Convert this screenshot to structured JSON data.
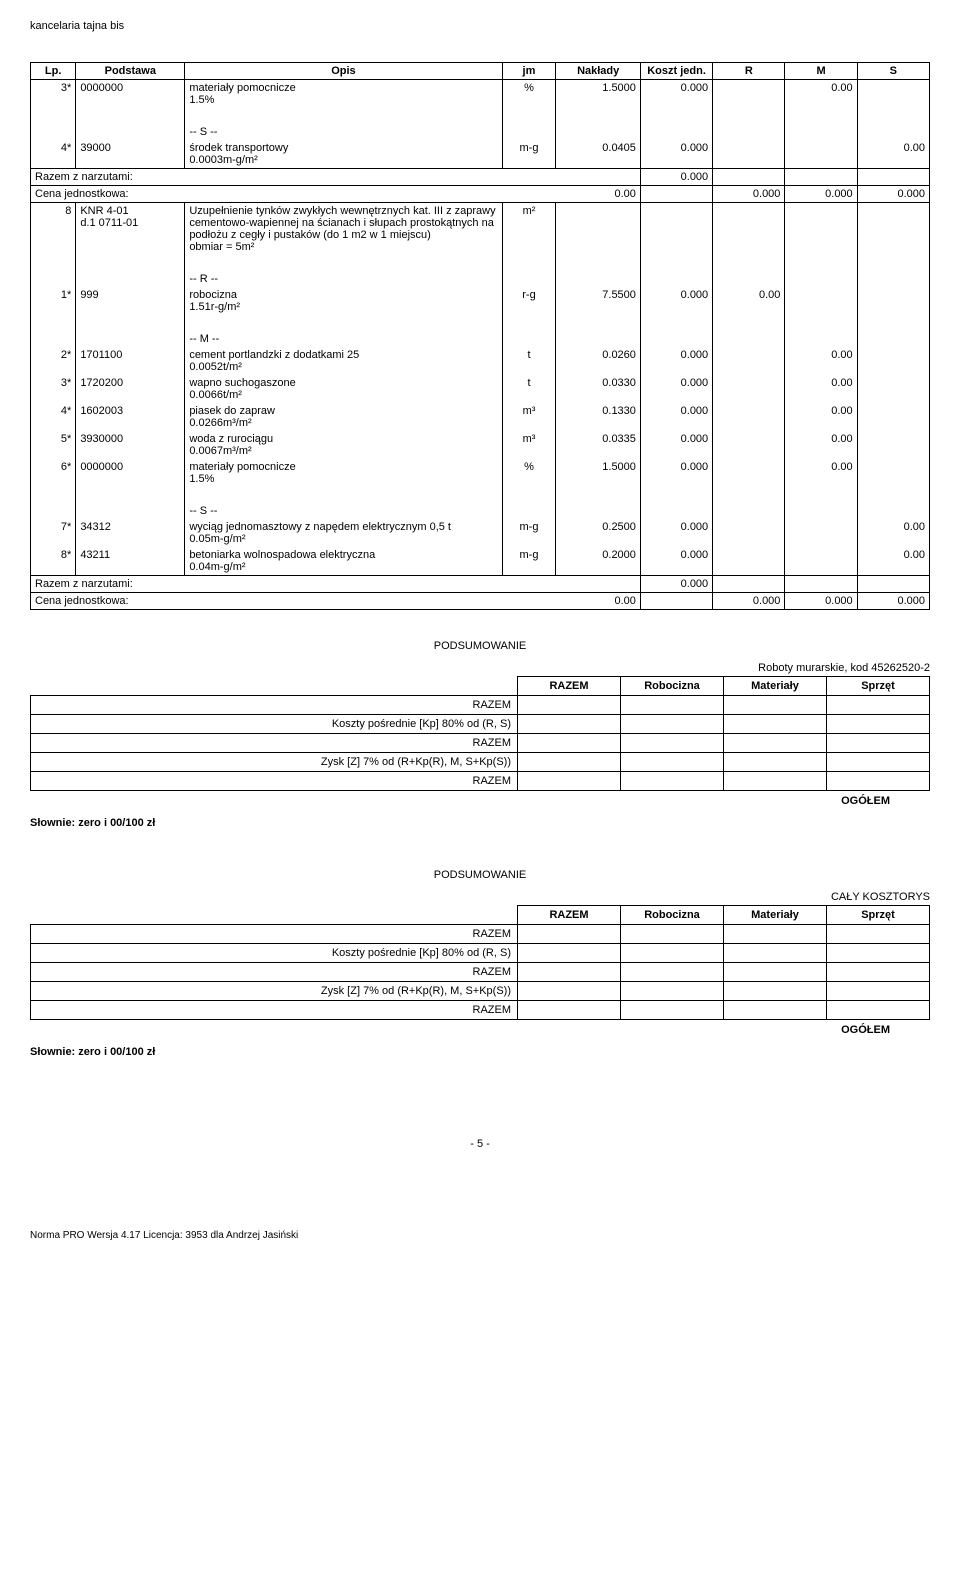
{
  "header": "kancelaria tajna bis",
  "columns": [
    "Lp.",
    "Podstawa",
    "Opis",
    "jm",
    "Nakłady",
    "Koszt jedn.",
    "R",
    "M",
    "S"
  ],
  "rows": [
    {
      "type": "data",
      "lp": "3*",
      "podstawa": "0000000",
      "opis": "materiały pomocnicze\n1.5%",
      "jm": "%",
      "naklady": "1.5000",
      "koszt": "0.000",
      "r": "",
      "m": "0.00",
      "s": ""
    },
    {
      "type": "spacer"
    },
    {
      "type": "group-label",
      "opis": "-- S --"
    },
    {
      "type": "data",
      "lp": "4*",
      "podstawa": "39000",
      "opis": "środek transportowy\n0.0003m-g/m²",
      "jm": "m-g",
      "naklady": "0.0405",
      "koszt": "0.000",
      "r": "",
      "m": "",
      "s": "0.00"
    },
    {
      "type": "razem",
      "label": "Razem z narzutami:",
      "koszt": "0.000"
    },
    {
      "type": "cena",
      "label": "Cena jednostkowa:",
      "val": "0.00",
      "r": "0.000",
      "m": "0.000",
      "s": "0.000"
    },
    {
      "type": "data",
      "lp": "8",
      "podstawa": "KNR 4-01\nd.1 0711-01",
      "opis": "Uzupełnienie tynków zwykłych wewnętrznych kat. III z zaprawy cementowo-wapiennej na ścianach i słupach prostokątnych na podłożu z cegły i pustaków (do 1 m2 w 1 miejscu)\nobmiar  = 5m²",
      "jm": "m²",
      "naklady": "",
      "koszt": "",
      "r": "",
      "m": "",
      "s": ""
    },
    {
      "type": "spacer"
    },
    {
      "type": "group-label",
      "opis": "-- R --"
    },
    {
      "type": "data",
      "lp": "1*",
      "podstawa": "999",
      "opis": "robocizna\n1.51r-g/m²",
      "jm": "r-g",
      "naklady": "7.5500",
      "koszt": "0.000",
      "r": "0.00",
      "m": "",
      "s": ""
    },
    {
      "type": "spacer"
    },
    {
      "type": "group-label",
      "opis": "-- M --"
    },
    {
      "type": "data",
      "lp": "2*",
      "podstawa": "1701100",
      "opis": "cement portlandzki z dodatkami 25\n0.0052t/m²",
      "jm": "t",
      "naklady": "0.0260",
      "koszt": "0.000",
      "r": "",
      "m": "0.00",
      "s": ""
    },
    {
      "type": "data",
      "lp": "3*",
      "podstawa": "1720200",
      "opis": "wapno suchogaszone\n0.0066t/m²",
      "jm": "t",
      "naklady": "0.0330",
      "koszt": "0.000",
      "r": "",
      "m": "0.00",
      "s": ""
    },
    {
      "type": "data",
      "lp": "4*",
      "podstawa": "1602003",
      "opis": "piasek do zapraw\n0.0266m³/m²",
      "jm": "m³",
      "naklady": "0.1330",
      "koszt": "0.000",
      "r": "",
      "m": "0.00",
      "s": ""
    },
    {
      "type": "data",
      "lp": "5*",
      "podstawa": "3930000",
      "opis": "woda z rurociągu\n0.0067m³/m²",
      "jm": "m³",
      "naklady": "0.0335",
      "koszt": "0.000",
      "r": "",
      "m": "0.00",
      "s": ""
    },
    {
      "type": "data",
      "lp": "6*",
      "podstawa": "0000000",
      "opis": "materiały pomocnicze\n1.5%",
      "jm": "%",
      "naklady": "1.5000",
      "koszt": "0.000",
      "r": "",
      "m": "0.00",
      "s": ""
    },
    {
      "type": "spacer"
    },
    {
      "type": "group-label",
      "opis": "-- S --"
    },
    {
      "type": "data",
      "lp": "7*",
      "podstawa": "34312",
      "opis": "wyciąg jednomasztowy z napędem elektrycznym 0,5 t\n0.05m-g/m²",
      "jm": "m-g",
      "naklady": "0.2500",
      "koszt": "0.000",
      "r": "",
      "m": "",
      "s": "0.00"
    },
    {
      "type": "data",
      "lp": "8*",
      "podstawa": "43211",
      "opis": "betoniarka wolnospadowa elektryczna\n0.04m-g/m²",
      "jm": "m-g",
      "naklady": "0.2000",
      "koszt": "0.000",
      "r": "",
      "m": "",
      "s": "0.00"
    },
    {
      "type": "razem",
      "label": "Razem z narzutami:",
      "koszt": "0.000"
    },
    {
      "type": "cena",
      "label": "Cena jednostkowa:",
      "val": "0.00",
      "r": "0.000",
      "m": "0.000",
      "s": "0.000"
    }
  ],
  "summary_title": "PODSUMOWANIE",
  "summary1": {
    "caption": "Roboty murarskie, kod 45262520-2",
    "headers": [
      "RAZEM",
      "Robocizna",
      "Materiały",
      "Sprzęt"
    ],
    "rows": [
      {
        "label": "RAZEM"
      },
      {
        "label": "Koszty pośrednie [Kp] 80% od (R, S)"
      },
      {
        "label": "RAZEM"
      },
      {
        "label": "Zysk [Z] 7% od (R+Kp(R), M, S+Kp(S))"
      },
      {
        "label": "RAZEM"
      }
    ],
    "ogolem": "OGÓŁEM",
    "slownie": "Słownie:  zero i 00/100 zł"
  },
  "summary2": {
    "caption": "CAŁY KOSZTORYS",
    "headers": [
      "RAZEM",
      "Robocizna",
      "Materiały",
      "Sprzęt"
    ],
    "rows": [
      {
        "label": "RAZEM"
      },
      {
        "label": "Koszty pośrednie [Kp] 80% od (R, S)"
      },
      {
        "label": "RAZEM"
      },
      {
        "label": "Zysk [Z] 7% od (R+Kp(R), M, S+Kp(S))"
      },
      {
        "label": "RAZEM"
      }
    ],
    "ogolem": "OGÓŁEM",
    "slownie": "Słownie:  zero i 00/100 zł"
  },
  "page_num": "- 5 -",
  "footer": "Norma PRO Wersja 4.17 Licencja: 3953 dla Andrzej Jasiński"
}
